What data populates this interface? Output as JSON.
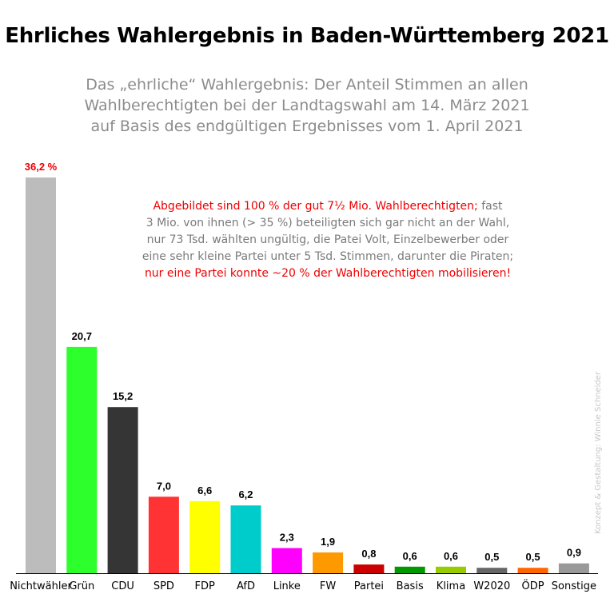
{
  "chart_data": {
    "type": "bar",
    "title": "Ehrliches Wahlergebnis in Baden-Württemberg 2021",
    "subtitle": [
      "Das „ehrliche“ Wahlergebnis: Der Anteil Stimmen an allen",
      "Wahlberechtigten bei der Landtagswahl am 14. März 2021",
      "auf Basis des endgültigen Ergebnisses vom 1. April 2021"
    ],
    "categories": [
      "Nichtwähler",
      "Grün",
      "CDU",
      "SPD",
      "FDP",
      "AfD",
      "Linke",
      "FW",
      "Partei",
      "Basis",
      "Klima",
      "W2020",
      "ÖDP",
      "Sonstige"
    ],
    "values": [
      36.2,
      20.7,
      15.2,
      7.0,
      6.6,
      6.2,
      2.3,
      1.9,
      0.8,
      0.6,
      0.6,
      0.5,
      0.5,
      0.9
    ],
    "value_labels": [
      "36,2 %",
      "20,7",
      "15,2",
      "7,0",
      "6,6",
      "6,2",
      "2,3",
      "1,9",
      "0,8",
      "0,6",
      "0,6",
      "0,5",
      "0,5",
      "0,9"
    ],
    "colors": [
      "#bcbcbc",
      "#2dff2d",
      "#353535",
      "#ff3333",
      "#ffff00",
      "#00cccc",
      "#ff00ff",
      "#ff9900",
      "#cc0000",
      "#009900",
      "#99cc00",
      "#666666",
      "#ff6600",
      "#999999"
    ],
    "first_label_color": "#ee0000",
    "ylim": [
      0,
      36.2
    ],
    "xlabel": "",
    "ylabel": "",
    "grid": false,
    "legend": "none"
  },
  "annotation": {
    "line1_red": "Abgebildet sind 100 % der gut 7½ Mio. Wahlberechtigten;",
    "line1_rest": " fast",
    "line2": "3 Mio. von ihnen (> 35 %) beteiligten sich gar nicht an der Wahl,",
    "line3": "nur 73 Tsd. wählten ungültig, die Patei Volt, Einzelbewerber oder",
    "line4": "eine sehr kleine Partei unter 5 Tsd. Stimmen, darunter die Piraten;",
    "line5_red": "nur eine Partei konnte ~20 % der Wahlberechtigten mobilisieren!"
  },
  "credit": "Konzept & Gestaltung: Winnie Schneider"
}
